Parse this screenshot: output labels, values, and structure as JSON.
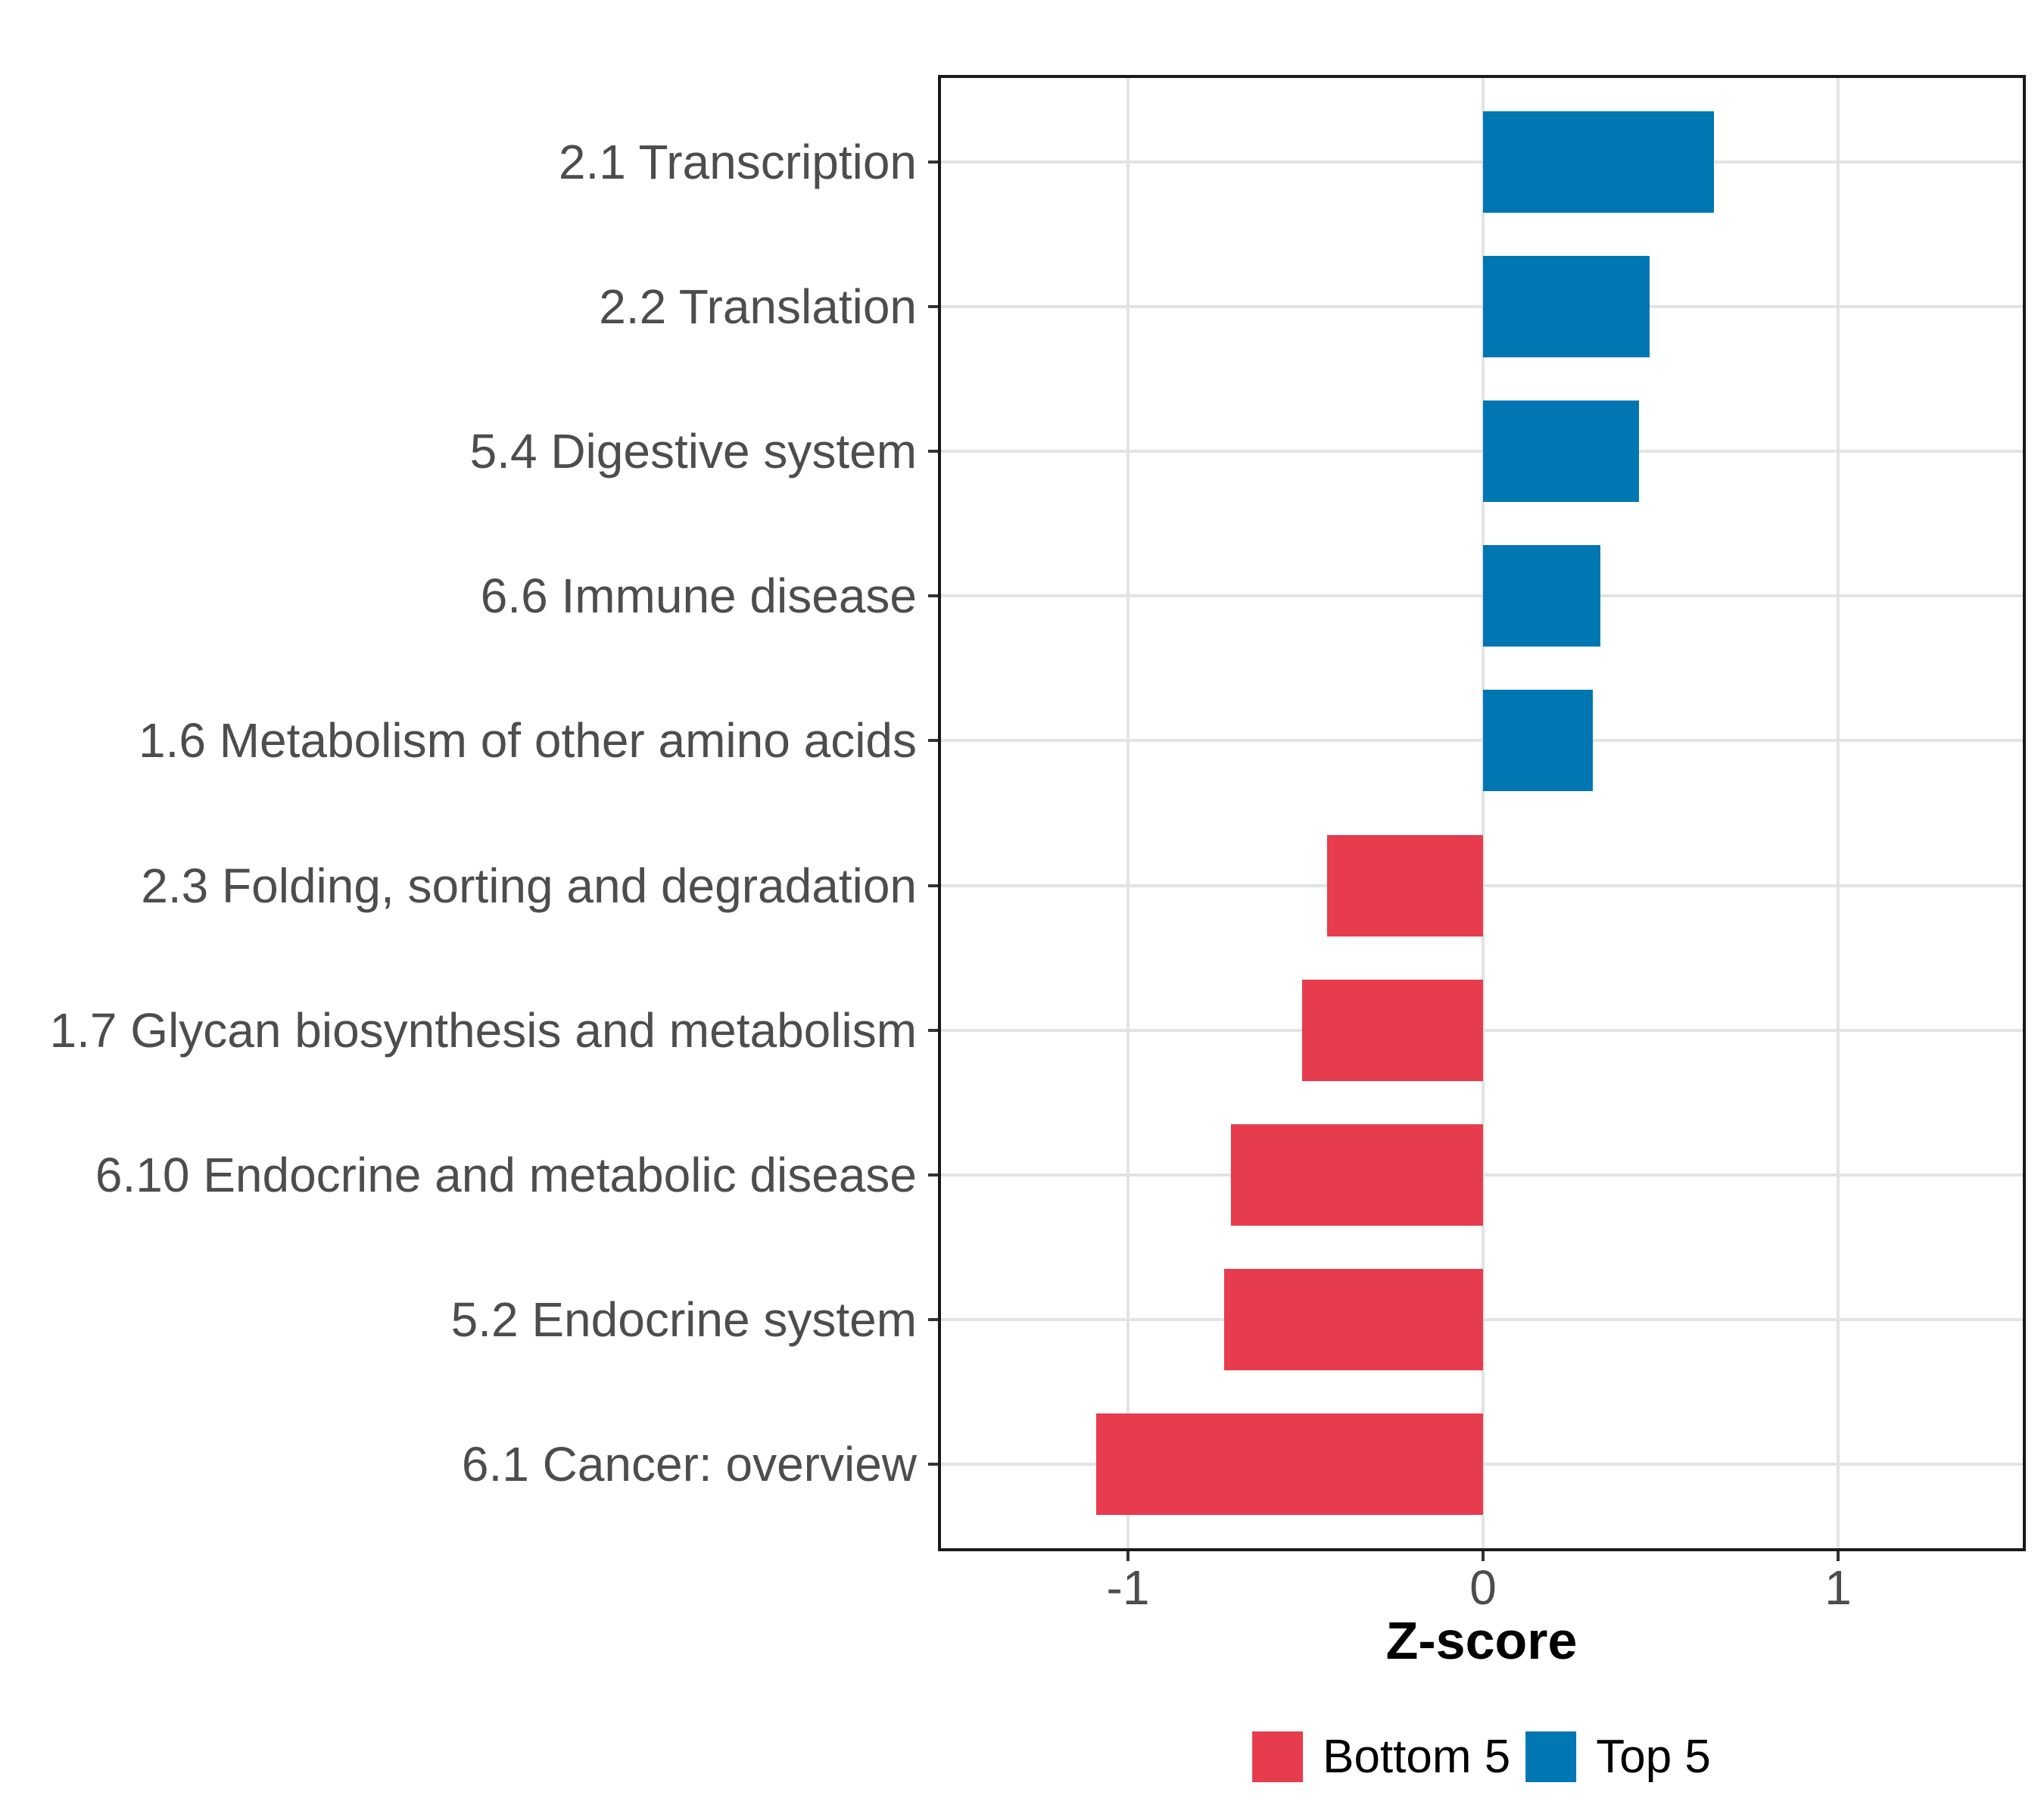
{
  "chart_data": {
    "type": "bar",
    "orientation": "horizontal",
    "title": "",
    "xlabel": "Z-score",
    "ylabel": "",
    "xlim": [
      -1.53,
      1.53
    ],
    "x_ticks": [
      -1,
      0,
      1
    ],
    "x_tick_labels": [
      "-1",
      "0",
      "1"
    ],
    "grid": "major-only",
    "legend_position": "bottom",
    "bar_width_fraction": 0.7,
    "categories": [
      "2.1 Transcription",
      "2.2 Translation",
      "5.4 Digestive system",
      "6.6 Immune disease",
      "1.6 Metabolism of other amino acids",
      "2.3 Folding, sorting and degradation",
      "1.7 Glycan biosynthesis and metabolism",
      "6.10 Endocrine and metabolic disease",
      "5.2 Endocrine system",
      "6.1 Cancer: overview"
    ],
    "values": [
      0.65,
      0.47,
      0.44,
      0.33,
      0.31,
      -0.44,
      -0.51,
      -0.71,
      -0.73,
      -1.09
    ],
    "groups": [
      "Top 5",
      "Top 5",
      "Top 5",
      "Top 5",
      "Top 5",
      "Bottom 5",
      "Bottom 5",
      "Bottom 5",
      "Bottom 5",
      "Bottom 5"
    ],
    "legend": [
      {
        "label": "Bottom 5",
        "color": "#E63C4D"
      },
      {
        "label": "Top 5",
        "color": "#0076B3"
      }
    ],
    "colors": {
      "Bottom 5": "#E63C4D",
      "Top 5": "#0076B3"
    }
  },
  "style": {
    "background": "#FFFFFF",
    "grid_color": "#E3E3E3",
    "panel_border_color": "#1A1A1A",
    "axis_text_color": "#4D4D4D",
    "tick_color": "#333333",
    "title_color": "#000000"
  }
}
